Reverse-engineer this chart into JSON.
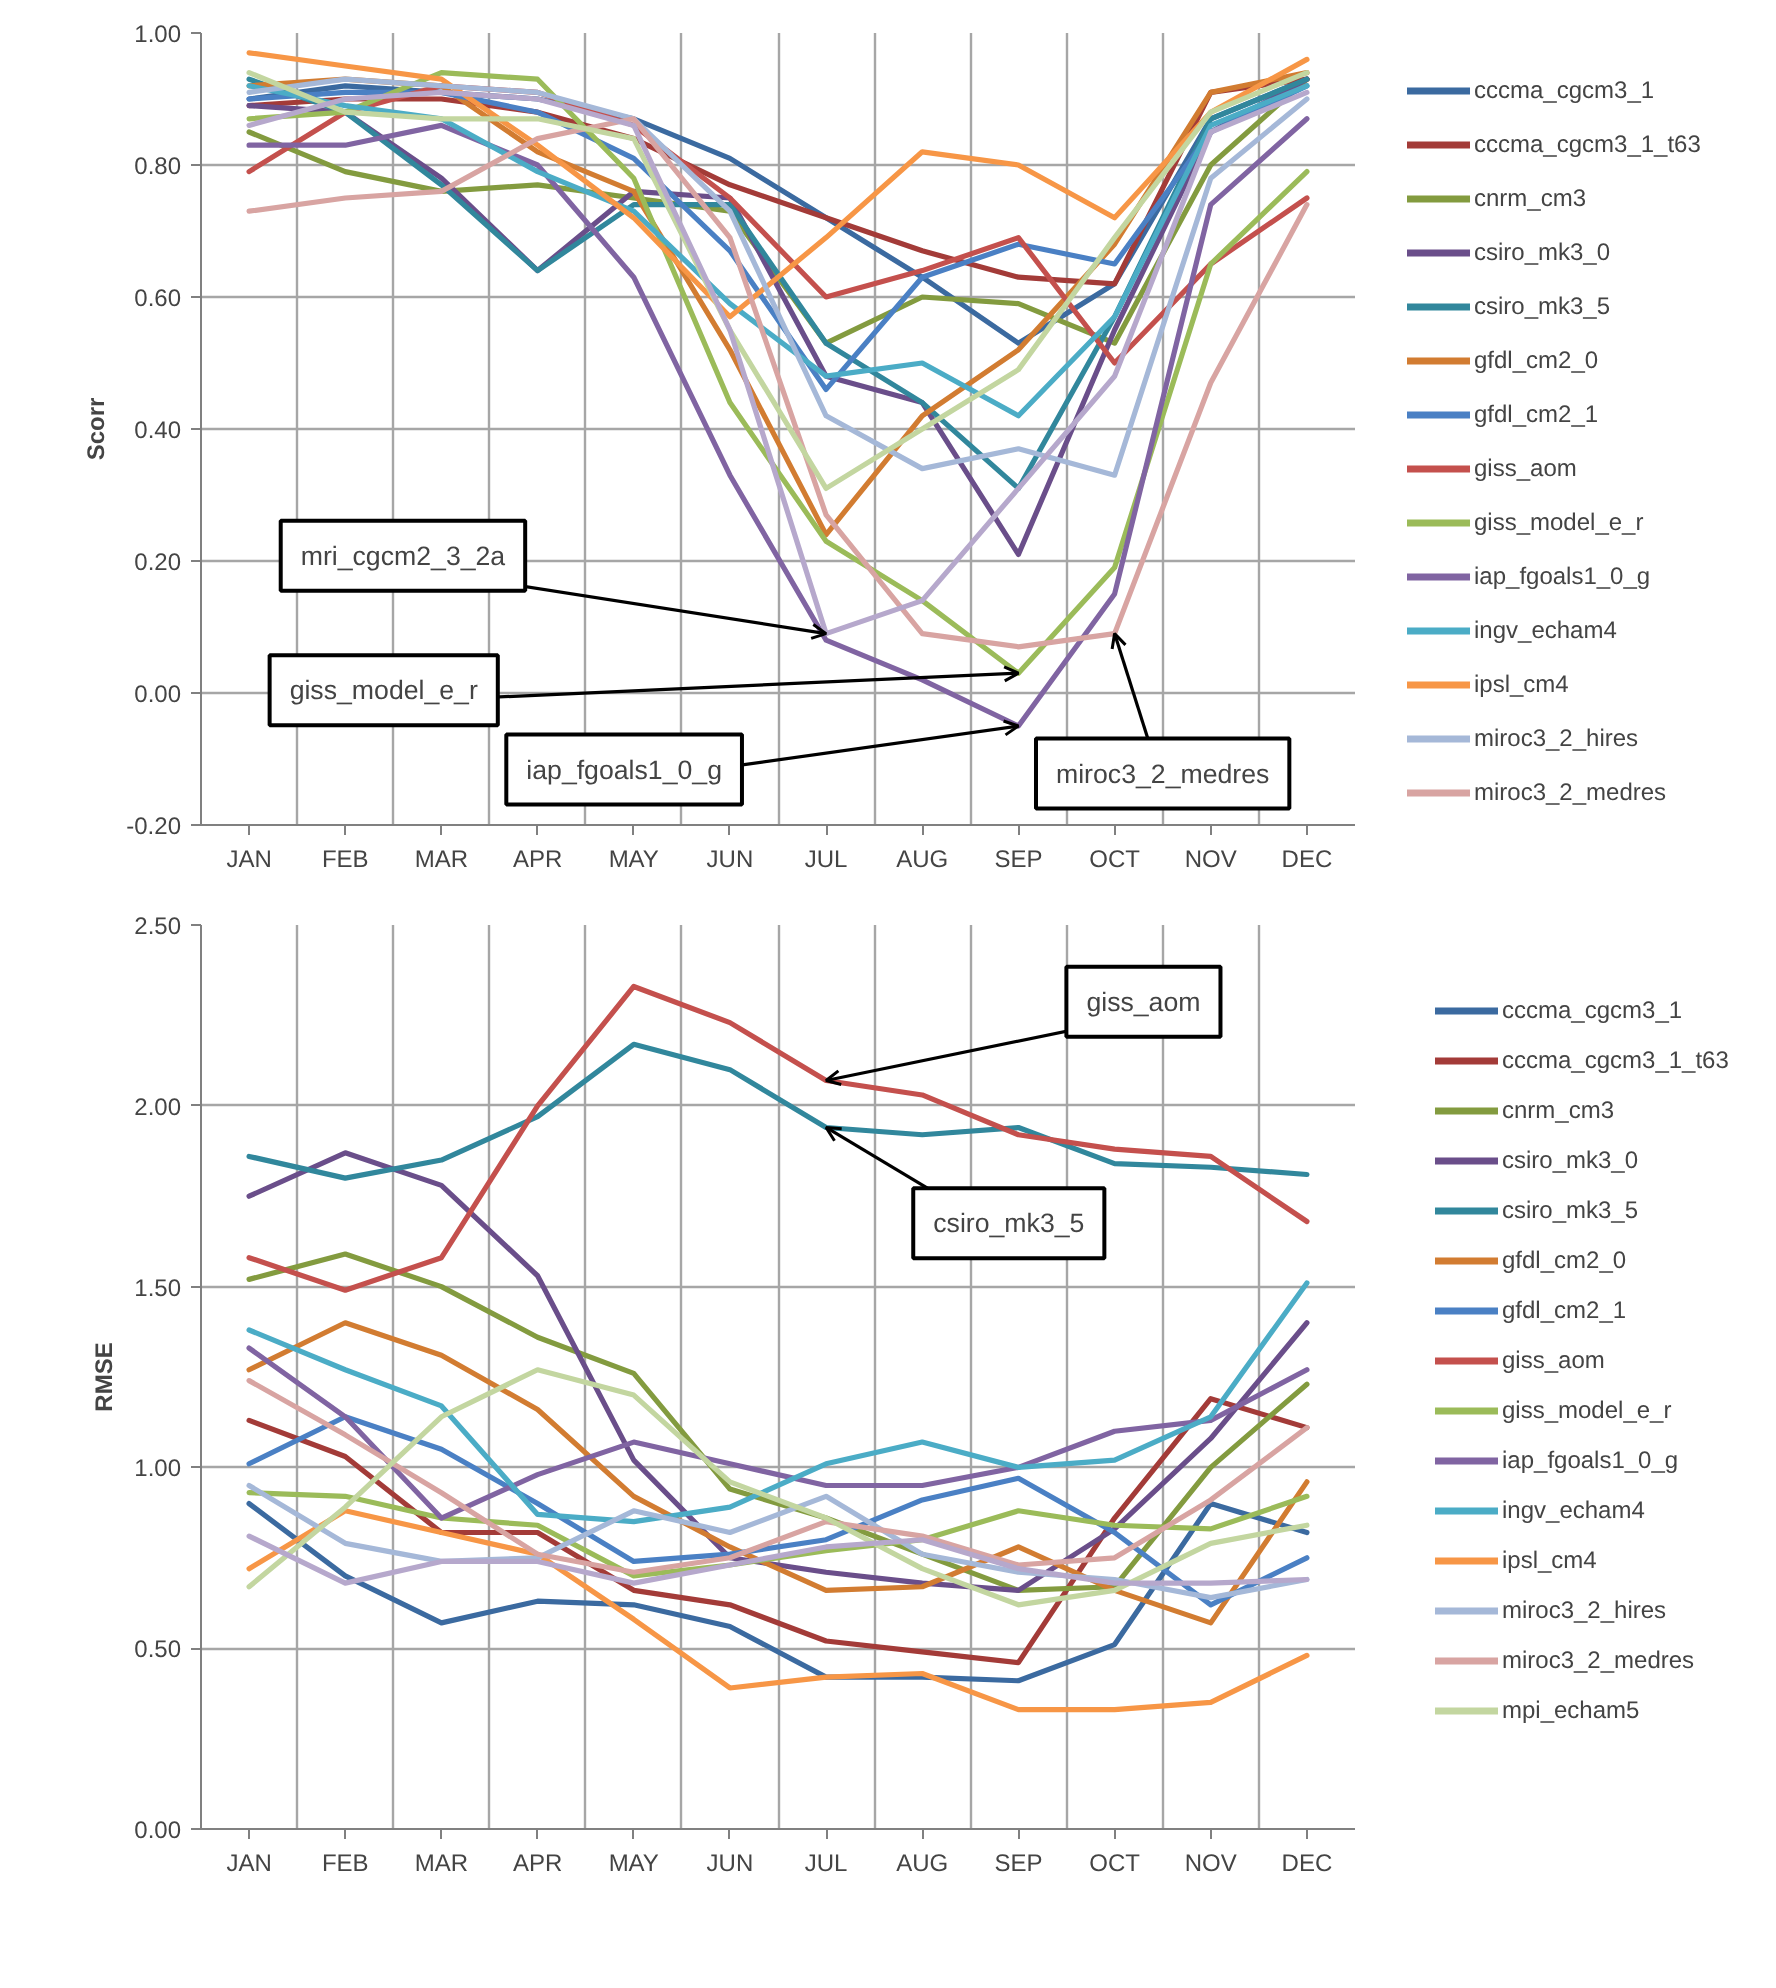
{
  "chart_data": [
    {
      "type": "line",
      "ylabel": "Scorr",
      "categories": [
        "JAN",
        "FEB",
        "MAR",
        "APR",
        "MAY",
        "JUN",
        "JUL",
        "AUG",
        "SEP",
        "OCT",
        "NOV",
        "DEC"
      ],
      "ylim": [
        -0.2,
        1.0
      ],
      "yticks": [
        {
          "value": -0.2,
          "label": "-0.20"
        },
        {
          "value": 0.0,
          "label": "0.00"
        },
        {
          "value": 0.2,
          "label": "0.20"
        },
        {
          "value": 0.4,
          "label": "0.40"
        },
        {
          "value": 0.6,
          "label": "0.60"
        },
        {
          "value": 0.8,
          "label": "0.80"
        },
        {
          "value": 1.0,
          "label": "1.00"
        }
      ],
      "grid": true,
      "legend": "right",
      "marker": "none",
      "line_style": "solid",
      "annotations": [
        {
          "text": "mri_cgcm2_3_2a",
          "x": "JUL",
          "y": 0.09
        },
        {
          "text": "giss_model_e_r",
          "x": "SEP",
          "y": 0.03
        },
        {
          "text": "iap_fgoals1_0_g",
          "x": "SEP",
          "y": -0.05
        },
        {
          "text": "miroc3_2_medres",
          "x": "OCT",
          "y": 0.09
        }
      ],
      "series": [
        {
          "name": "cccma_cgcm3_1",
          "color": "#3b6aa0",
          "values": [
            0.9,
            0.92,
            0.91,
            0.9,
            0.87,
            0.81,
            0.72,
            0.63,
            0.53,
            0.62,
            0.87,
            0.93
          ]
        },
        {
          "name": "cccma_cgcm3_1_t63",
          "color": "#a33b38",
          "values": [
            0.89,
            0.9,
            0.9,
            0.88,
            0.84,
            0.77,
            0.72,
            0.67,
            0.63,
            0.62,
            0.91,
            0.93
          ]
        },
        {
          "name": "cnrm_cm3",
          "color": "#839b3f",
          "values": [
            0.85,
            0.79,
            0.76,
            0.77,
            0.75,
            0.73,
            0.53,
            0.6,
            0.59,
            0.53,
            0.8,
            0.93
          ]
        },
        {
          "name": "csiro_mk3_0",
          "color": "#6a4e8a",
          "values": [
            0.89,
            0.88,
            0.78,
            0.64,
            0.76,
            0.75,
            0.48,
            0.44,
            0.21,
            0.55,
            0.85,
            0.93
          ]
        },
        {
          "name": "csiro_mk3_5",
          "color": "#31879c",
          "values": [
            0.93,
            0.88,
            0.77,
            0.64,
            0.74,
            0.74,
            0.53,
            0.44,
            0.31,
            0.57,
            0.87,
            0.93
          ]
        },
        {
          "name": "gfdl_cm2_0",
          "color": "#d27c31",
          "values": [
            0.92,
            0.93,
            0.92,
            0.82,
            0.76,
            0.52,
            0.24,
            0.42,
            0.52,
            0.68,
            0.91,
            0.94
          ]
        },
        {
          "name": "gfdl_cm2_1",
          "color": "#4a80c4",
          "values": [
            0.9,
            0.91,
            0.91,
            0.88,
            0.81,
            0.67,
            0.46,
            0.63,
            0.68,
            0.65,
            0.85,
            0.92
          ]
        },
        {
          "name": "giss_aom",
          "color": "#c4504d",
          "values": [
            0.79,
            0.88,
            0.92,
            0.91,
            0.86,
            0.75,
            0.6,
            0.64,
            0.69,
            0.5,
            0.65,
            0.75
          ]
        },
        {
          "name": "giss_model_e_r",
          "color": "#9bbb59",
          "values": [
            0.87,
            0.88,
            0.94,
            0.93,
            0.78,
            0.44,
            0.23,
            0.14,
            0.03,
            0.19,
            0.65,
            0.79
          ]
        },
        {
          "name": "iap_fgoals1_0_g",
          "color": "#8064a2",
          "values": [
            0.83,
            0.83,
            0.86,
            0.8,
            0.63,
            0.33,
            0.08,
            0.02,
            -0.05,
            0.15,
            0.74,
            0.87
          ]
        },
        {
          "name": "ingv_echam4",
          "color": "#4bacc6",
          "values": [
            0.92,
            0.89,
            0.87,
            0.79,
            0.73,
            0.59,
            0.48,
            0.5,
            0.42,
            0.57,
            0.86,
            0.92
          ]
        },
        {
          "name": "ipsl_cm4",
          "color": "#f79646",
          "values": [
            0.97,
            0.95,
            0.93,
            0.83,
            0.72,
            0.57,
            0.69,
            0.82,
            0.8,
            0.72,
            0.88,
            0.96
          ]
        },
        {
          "name": "miroc3_2_hires",
          "color": "#a5b8d8",
          "values": [
            0.91,
            0.93,
            0.92,
            0.91,
            0.87,
            0.73,
            0.42,
            0.34,
            0.37,
            0.33,
            0.78,
            0.9
          ]
        },
        {
          "name": "miroc3_2_medres",
          "color": "#d8a4a2",
          "values": [
            0.73,
            0.75,
            0.76,
            0.84,
            0.87,
            0.69,
            0.27,
            0.09,
            0.07,
            0.09,
            0.47,
            0.74
          ]
        },
        {
          "color": "#c3d6a0",
          "values": [
            0.94,
            0.88,
            0.87,
            0.87,
            0.84,
            0.55,
            0.31,
            0.4,
            0.49,
            0.69,
            0.88,
            0.94
          ]
        },
        {
          "color": "#b6a8cc",
          "values": [
            0.86,
            0.9,
            0.91,
            0.9,
            0.86,
            0.55,
            0.09,
            0.14,
            0.31,
            0.48,
            0.85,
            0.91
          ]
        }
      ]
    },
    {
      "type": "line",
      "ylabel": "RMSE",
      "categories": [
        "JAN",
        "FEB",
        "MAR",
        "APR",
        "MAY",
        "JUN",
        "JUL",
        "AUG",
        "SEP",
        "OCT",
        "NOV",
        "DEC"
      ],
      "ylim": [
        0.0,
        2.5
      ],
      "yticks": [
        {
          "value": 0.0,
          "label": "0.00"
        },
        {
          "value": 0.5,
          "label": "0.50"
        },
        {
          "value": 1.0,
          "label": "1.00"
        },
        {
          "value": 1.5,
          "label": "1.50"
        },
        {
          "value": 2.0,
          "label": "2.00"
        },
        {
          "value": 2.5,
          "label": "2.50"
        }
      ],
      "grid": true,
      "legend": "right",
      "marker": "none",
      "line_style": "solid",
      "annotations": [
        {
          "text": "giss_aom",
          "x": "JUL",
          "y": 2.07
        },
        {
          "text": "csiro_mk3_5",
          "x": "JUL",
          "y": 1.94
        }
      ],
      "series": [
        {
          "name": "cccma_cgcm3_1",
          "color": "#3b6aa0",
          "values": [
            0.9,
            0.7,
            0.57,
            0.63,
            0.62,
            0.56,
            0.42,
            0.42,
            0.41,
            0.51,
            0.9,
            0.82
          ]
        },
        {
          "name": "cccma_cgcm3_1_t63",
          "color": "#a33b38",
          "values": [
            1.13,
            1.03,
            0.82,
            0.82,
            0.66,
            0.62,
            0.52,
            0.49,
            0.46,
            0.86,
            1.19,
            1.11
          ]
        },
        {
          "name": "cnrm_cm3",
          "color": "#839b3f",
          "values": [
            1.52,
            1.59,
            1.5,
            1.36,
            1.26,
            0.94,
            0.86,
            0.76,
            0.66,
            0.67,
            1.0,
            1.23
          ]
        },
        {
          "name": "csiro_mk3_0",
          "color": "#6a4e8a",
          "values": [
            1.75,
            1.87,
            1.78,
            1.53,
            1.02,
            0.75,
            0.71,
            0.68,
            0.66,
            0.83,
            1.08,
            1.4
          ]
        },
        {
          "name": "csiro_mk3_5",
          "color": "#31879c",
          "values": [
            1.86,
            1.8,
            1.85,
            1.97,
            2.17,
            2.1,
            1.94,
            1.92,
            1.94,
            1.84,
            1.83,
            1.81
          ]
        },
        {
          "name": "gfdl_cm2_0",
          "color": "#d27c31",
          "values": [
            1.27,
            1.4,
            1.31,
            1.16,
            0.92,
            0.78,
            0.66,
            0.67,
            0.78,
            0.66,
            0.57,
            0.96
          ]
        },
        {
          "name": "gfdl_cm2_1",
          "color": "#4a80c4",
          "values": [
            1.01,
            1.14,
            1.05,
            0.9,
            0.74,
            0.76,
            0.8,
            0.91,
            0.97,
            0.82,
            0.62,
            0.75
          ]
        },
        {
          "name": "giss_aom",
          "color": "#c4504d",
          "values": [
            1.58,
            1.49,
            1.58,
            2.0,
            2.33,
            2.23,
            2.07,
            2.03,
            1.92,
            1.88,
            1.86,
            1.68
          ]
        },
        {
          "name": "giss_model_e_r",
          "color": "#9bbb59",
          "values": [
            0.93,
            0.92,
            0.86,
            0.84,
            0.7,
            0.73,
            0.77,
            0.8,
            0.88,
            0.84,
            0.83,
            0.92
          ]
        },
        {
          "name": "iap_fgoals1_0_g",
          "color": "#8064a2",
          "values": [
            1.33,
            1.14,
            0.86,
            0.98,
            1.07,
            1.01,
            0.95,
            0.95,
            1.0,
            1.1,
            1.13,
            1.27
          ]
        },
        {
          "name": "ingv_echam4",
          "color": "#4bacc6",
          "values": [
            1.38,
            1.27,
            1.17,
            0.87,
            0.85,
            0.89,
            1.01,
            1.07,
            1.0,
            1.02,
            1.14,
            1.51
          ]
        },
        {
          "name": "ipsl_cm4",
          "color": "#f79646",
          "values": [
            0.72,
            0.88,
            0.82,
            0.76,
            0.58,
            0.39,
            0.42,
            0.43,
            0.33,
            0.33,
            0.35,
            0.48
          ]
        },
        {
          "name": "miroc3_2_hires",
          "color": "#a5b8d8",
          "values": [
            0.95,
            0.79,
            0.74,
            0.75,
            0.88,
            0.82,
            0.92,
            0.76,
            0.71,
            0.69,
            0.64,
            0.69
          ]
        },
        {
          "name": "miroc3_2_medres",
          "color": "#d8a4a2",
          "values": [
            1.24,
            1.09,
            0.93,
            0.76,
            0.71,
            0.75,
            0.85,
            0.81,
            0.73,
            0.75,
            0.91,
            1.11
          ]
        },
        {
          "name": "mpi_echam5",
          "color": "#c3d6a0",
          "values": [
            0.67,
            0.89,
            1.14,
            1.27,
            1.2,
            0.96,
            0.86,
            0.72,
            0.62,
            0.66,
            0.79,
            0.84
          ]
        },
        {
          "color": "#b6a8cc",
          "values": [
            0.81,
            0.68,
            0.74,
            0.74,
            0.68,
            0.73,
            0.78,
            0.8,
            0.72,
            0.68,
            0.68,
            0.69
          ]
        }
      ]
    }
  ]
}
